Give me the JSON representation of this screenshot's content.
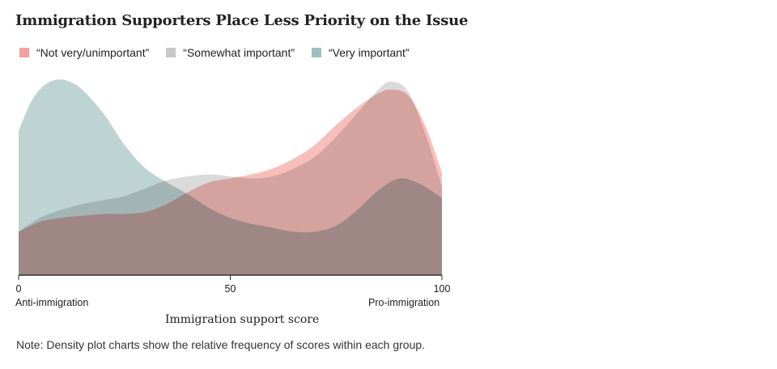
{
  "title": "Immigration Supporters Place Less Priority on the Issue",
  "note": "Note: Density plot charts show the relative frequency of scores within each group.",
  "legend": [
    {
      "label": "“Not very/unimportant”",
      "color": "#f4a19a"
    },
    {
      "label": "“Somewhat important”",
      "color": "#c8c8c8"
    },
    {
      "label": "“Very important”",
      "color": "#9fbfbe"
    }
  ],
  "chart_data": {
    "type": "area",
    "title": "Immigration Supporters Place Less Priority on the Issue",
    "xlabel": "Immigration support score",
    "ylabel": "",
    "xlim": [
      0,
      100
    ],
    "ylim": [
      0,
      1
    ],
    "x_ticks": [
      0,
      50,
      100
    ],
    "x_end_labels": {
      "left": "Anti-immigration",
      "right": "Pro-immigration"
    },
    "legend_position": "top-left",
    "grid": false,
    "series": [
      {
        "name": "“Not very/unimportant”",
        "color": "#f4a19a",
        "x": [
          0,
          5,
          10,
          15,
          20,
          25,
          30,
          35,
          40,
          45,
          50,
          55,
          60,
          65,
          70,
          75,
          80,
          85,
          88,
          92,
          96,
          100
        ],
        "values": [
          0.22,
          0.27,
          0.29,
          0.3,
          0.31,
          0.31,
          0.32,
          0.36,
          0.42,
          0.47,
          0.49,
          0.51,
          0.54,
          0.59,
          0.66,
          0.76,
          0.85,
          0.92,
          0.94,
          0.91,
          0.76,
          0.52
        ]
      },
      {
        "name": "“Somewhat important”",
        "color": "#c8c8c8",
        "x": [
          0,
          5,
          10,
          15,
          20,
          25,
          30,
          35,
          40,
          45,
          50,
          55,
          60,
          65,
          70,
          75,
          80,
          85,
          88,
          92,
          96,
          100
        ],
        "values": [
          0.22,
          0.29,
          0.33,
          0.36,
          0.38,
          0.4,
          0.44,
          0.48,
          0.5,
          0.51,
          0.5,
          0.49,
          0.5,
          0.54,
          0.6,
          0.7,
          0.82,
          0.94,
          0.98,
          0.93,
          0.72,
          0.45
        ]
      },
      {
        "name": "“Very important”",
        "color": "#9fbfbe",
        "x": [
          0,
          3,
          6,
          9,
          12,
          15,
          20,
          25,
          30,
          35,
          40,
          45,
          50,
          55,
          60,
          65,
          70,
          75,
          80,
          85,
          90,
          95,
          100
        ],
        "values": [
          0.73,
          0.88,
          0.96,
          0.99,
          0.98,
          0.94,
          0.82,
          0.66,
          0.54,
          0.47,
          0.41,
          0.34,
          0.29,
          0.26,
          0.24,
          0.22,
          0.22,
          0.25,
          0.33,
          0.43,
          0.49,
          0.46,
          0.39
        ]
      }
    ]
  }
}
